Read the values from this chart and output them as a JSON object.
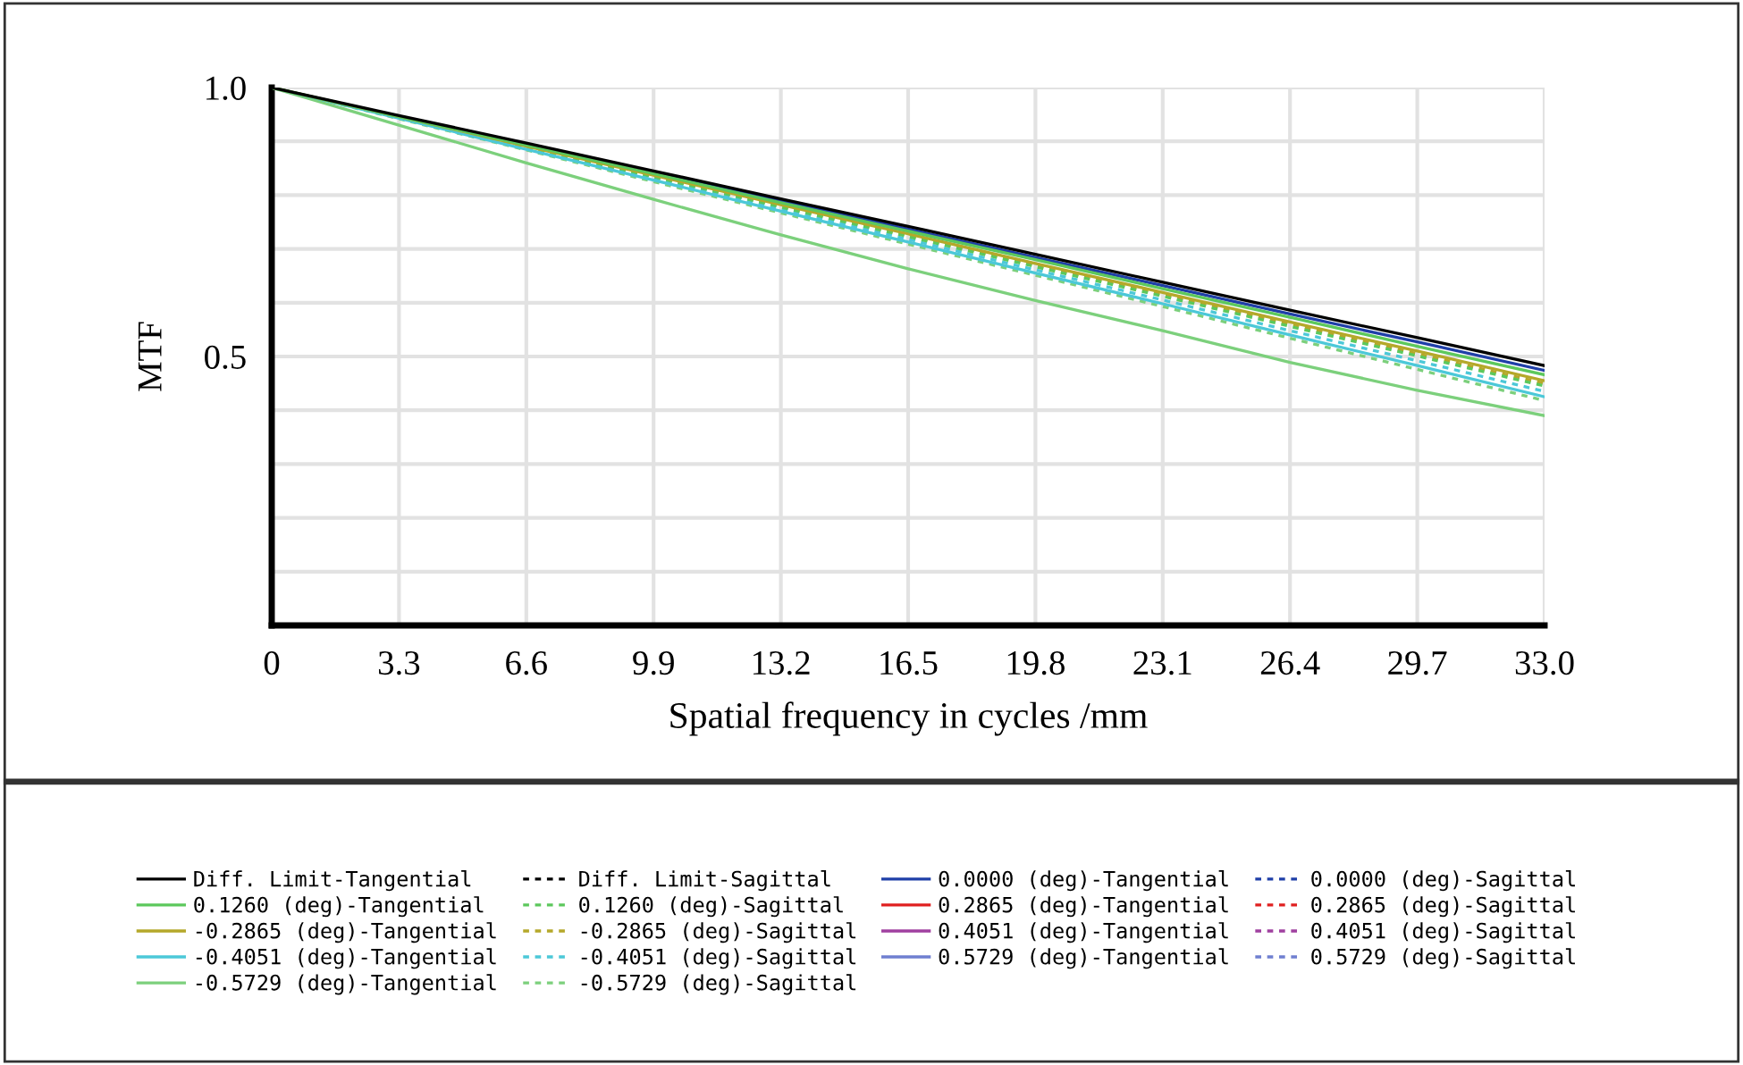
{
  "chart_data": {
    "type": "line",
    "xlabel": "Spatial frequency in cycles /mm",
    "ylabel": "MTF",
    "x": [
      0,
      3.3,
      6.6,
      9.9,
      13.2,
      16.5,
      19.8,
      23.1,
      26.4,
      29.7,
      33.0
    ],
    "xlim": [
      0,
      33.0
    ],
    "xticks": [
      0,
      3.3,
      6.6,
      9.9,
      13.2,
      16.5,
      19.8,
      23.1,
      26.4,
      29.7,
      {
        "value": 33.0,
        "label": "33.0"
      }
    ],
    "ylim": [
      0,
      1.0
    ],
    "yticks": [
      {
        "value": 0.1,
        "label": null
      },
      {
        "value": 0.2,
        "label": null
      },
      {
        "value": 0.3,
        "label": null
      },
      {
        "value": 0.4,
        "label": null
      },
      {
        "value": 0.5,
        "label": "0.5"
      },
      {
        "value": 0.6,
        "label": null
      },
      {
        "value": 0.7,
        "label": null
      },
      {
        "value": 0.8,
        "label": null
      },
      {
        "value": 0.9,
        "label": null
      },
      {
        "value": 1.0,
        "label": "1.0"
      }
    ],
    "grid": true,
    "legend": "bottom",
    "marker": "none",
    "series": [
      {
        "name": "Diff. Limit-Tangential",
        "color": "#000000",
        "line_style": "solid",
        "values": [
          1,
          0.948,
          0.897,
          0.845,
          0.793,
          0.742,
          0.69,
          0.638,
          0.586,
          0.535,
          0.483
        ]
      },
      {
        "name": "0.1260 (deg)-Tangential",
        "color": "#5cc85c",
        "line_style": "solid",
        "values": [
          1,
          0.946,
          0.893,
          0.84,
          0.786,
          0.733,
          0.68,
          0.626,
          0.573,
          0.519,
          0.466
        ]
      },
      {
        "name": "-0.2865 (deg)-Tangential",
        "color": "#b5a82a",
        "line_style": "solid",
        "values": [
          1,
          0.946,
          0.891,
          0.837,
          0.782,
          0.728,
          0.673,
          0.619,
          0.564,
          0.51,
          0.455
        ]
      },
      {
        "name": "-0.4051 (deg)-Tangential",
        "color": "#4cc8d8",
        "line_style": "solid",
        "values": [
          1,
          0.943,
          0.885,
          0.828,
          0.77,
          0.713,
          0.655,
          0.598,
          0.54,
          0.483,
          0.425
        ]
      },
      {
        "name": "-0.5729 (deg)-Tangential",
        "color": "#7cd07c",
        "line_style": "solid",
        "values": [
          1,
          0.93,
          0.86,
          0.792,
          0.726,
          0.663,
          0.604,
          0.548,
          0.489,
          0.437,
          0.39
        ]
      },
      {
        "name": "Diff. Limit-Sagittal",
        "color": "#000000",
        "line_style": "dashed",
        "values": [
          null,
          null,
          null,
          null,
          null,
          null,
          null,
          null,
          null,
          null,
          null
        ]
      },
      {
        "name": "0.1260 (deg)-Sagittal",
        "color": "#5cc85c",
        "line_style": "dashed",
        "values": [
          1,
          0.945,
          0.889,
          0.834,
          0.778,
          0.723,
          0.667,
          0.612,
          0.556,
          0.501,
          0.445
        ]
      },
      {
        "name": "-0.2865 (deg)-Sagittal",
        "color": "#b5a82a",
        "line_style": "dashed",
        "values": [
          1,
          0.945,
          0.89,
          0.835,
          0.78,
          0.725,
          0.67,
          0.615,
          0.56,
          0.505,
          0.45
        ]
      },
      {
        "name": "-0.4051 (deg)-Sagittal",
        "color": "#4cc8d8",
        "line_style": "dashed",
        "values": [
          1,
          0.944,
          0.887,
          0.831,
          0.774,
          0.718,
          0.661,
          0.605,
          0.548,
          0.492,
          0.435
        ]
      },
      {
        "name": "-0.5729 (deg)-Sagittal",
        "color": "#7cd07c",
        "line_style": "dashed",
        "values": [
          1,
          0.942,
          0.884,
          0.825,
          0.767,
          0.709,
          0.651,
          0.593,
          0.534,
          0.476,
          0.418
        ]
      },
      {
        "name": "0.0000 (deg)-Tangential",
        "color": "#1f3fa8",
        "line_style": "solid",
        "values": [
          null,
          null,
          null,
          0.842,
          0.79,
          0.737,
          0.684,
          0.632,
          0.579,
          0.527,
          0.474
        ]
      },
      {
        "name": "0.2865 (deg)-Tangential",
        "color": "#e02020",
        "line_style": "solid",
        "values": [
          null,
          null,
          null,
          null,
          null,
          null,
          null,
          null,
          null,
          null,
          null
        ]
      },
      {
        "name": "0.4051 (deg)-Tangential",
        "color": "#a040a0",
        "line_style": "solid",
        "values": [
          null,
          null,
          null,
          null,
          null,
          null,
          null,
          null,
          null,
          null,
          null
        ]
      },
      {
        "name": "0.5729 (deg)-Tangential",
        "color": "#6f7fd0",
        "line_style": "solid",
        "values": [
          null,
          null,
          null,
          null,
          null,
          null,
          null,
          null,
          null,
          null,
          null
        ]
      },
      {
        "name": "0.0000 (deg)-Sagittal",
        "color": "#1f3fa8",
        "line_style": "dashed",
        "values": [
          null,
          null,
          null,
          null,
          null,
          null,
          null,
          null,
          null,
          null,
          null
        ]
      },
      {
        "name": "0.2865 (deg)-Sagittal",
        "color": "#e02020",
        "line_style": "dashed",
        "values": [
          null,
          null,
          null,
          null,
          null,
          null,
          null,
          null,
          null,
          null,
          null
        ]
      },
      {
        "name": "0.4051 (deg)-Sagittal",
        "color": "#a040a0",
        "line_style": "dashed",
        "values": [
          null,
          null,
          null,
          null,
          null,
          null,
          null,
          null,
          null,
          null,
          null
        ]
      },
      {
        "name": "0.5729 (deg)-Sagittal",
        "color": "#6f7fd0",
        "line_style": "dashed",
        "values": [
          null,
          null,
          null,
          null,
          null,
          null,
          null,
          null,
          null,
          null,
          null
        ]
      }
    ]
  }
}
